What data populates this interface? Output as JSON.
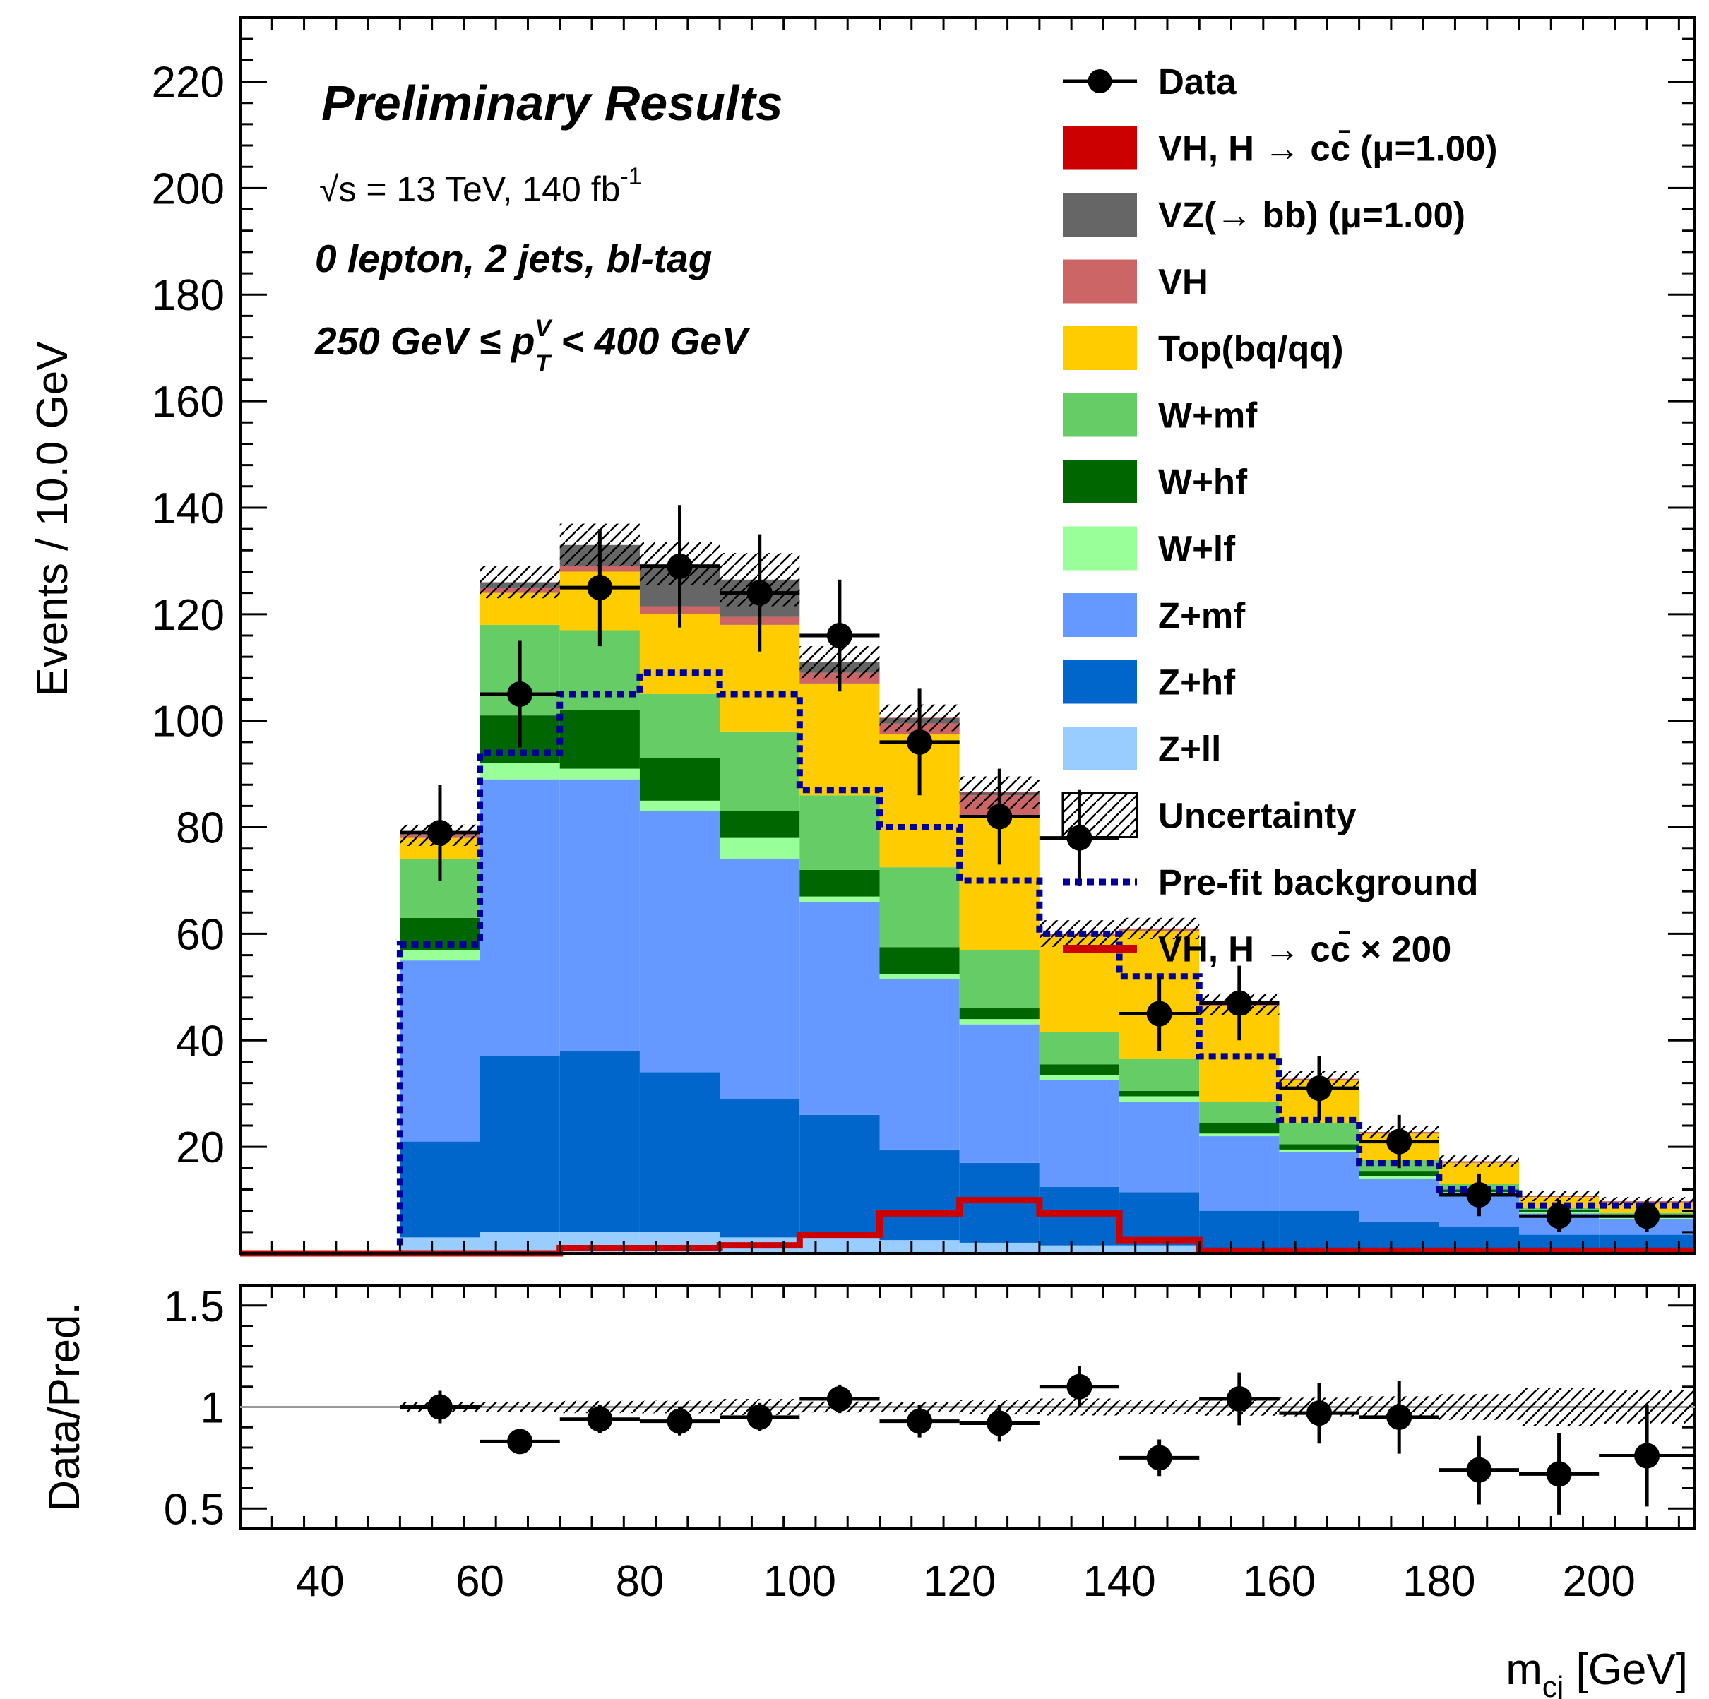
{
  "chart_data": {
    "type": "bar",
    "subtype": "stacked-histogram",
    "title": "Preliminary Results",
    "annotations": {
      "energy": "√s = 13 TeV, 140 fb",
      "energy_sup": "-1",
      "selection": "0 lepton, 2 jets, bl-tag",
      "ptv_pre": "250 GeV  ≤ p",
      "ptv_sup": "V",
      "ptv_sub": "T",
      "ptv_post": " < 400 GeV"
    },
    "ylabel": "Events / 10.0 GeV",
    "xlabel": "m",
    "xlabel_sub": "cj",
    "xlabel_unit": " [GeV]",
    "ratio_ylabel": "Data/Pred.",
    "xlim": [
      30,
      212
    ],
    "ylim": [
      0,
      232
    ],
    "ratio_ylim": [
      0.4,
      1.6
    ],
    "x_ticks": [
      "40",
      "60",
      "80",
      "100",
      "120",
      "140",
      "160",
      "180",
      "200"
    ],
    "y_ticks": [
      "20",
      "40",
      "60",
      "80",
      "100",
      "120",
      "140",
      "160",
      "180",
      "200",
      "220"
    ],
    "ratio_ticks": [
      "0.5",
      "1",
      "1.5"
    ],
    "bin_edges": [
      50,
      60,
      70,
      80,
      90,
      100,
      110,
      120,
      130,
      140,
      150,
      160,
      170,
      180,
      190,
      200,
      212
    ],
    "series": [
      {
        "name": "Z+ll",
        "color": "#99ccff",
        "values": [
          3,
          4,
          4,
          4,
          3,
          3,
          2.5,
          2,
          1.5,
          1.5,
          1,
          1,
          1,
          1,
          0.5,
          0.5
        ]
      },
      {
        "name": "Z+hf",
        "color": "#0066cc",
        "values": [
          18,
          33,
          34,
          30,
          26,
          23,
          17,
          15,
          11,
          10,
          7,
          7,
          5,
          4,
          3,
          3
        ]
      },
      {
        "name": "Z+mf",
        "color": "#6699ff",
        "values": [
          34,
          52,
          51,
          49,
          45,
          40,
          32,
          26,
          20,
          17,
          14,
          11,
          8,
          6,
          4,
          3
        ]
      },
      {
        "name": "W+lf",
        "color": "#99ff99",
        "values": [
          2,
          3,
          2,
          2,
          4,
          1,
          1,
          1,
          1,
          1,
          0.5,
          0.5,
          0.5,
          0.5,
          0.3,
          0.3
        ]
      },
      {
        "name": "W+hf",
        "color": "#006600",
        "values": [
          6,
          9,
          11,
          8,
          5,
          5,
          5,
          2,
          2,
          1,
          2,
          1,
          1,
          0.5,
          0.3,
          0.3
        ]
      },
      {
        "name": "W+mf",
        "color": "#66cc66",
        "values": [
          11,
          17,
          15,
          12,
          15,
          14,
          15,
          11,
          6,
          6,
          4,
          4,
          2,
          1,
          0.5,
          0.5
        ]
      },
      {
        "name": "Top(bq/qq)",
        "color": "#ffcc00",
        "values": [
          4,
          6,
          11,
          15,
          20,
          21,
          25,
          25,
          18,
          24,
          18,
          8,
          5,
          4,
          2,
          2
        ]
      },
      {
        "name": "VH",
        "color": "#cc6666",
        "values": [
          0.5,
          1,
          1,
          1.5,
          1.5,
          2,
          2,
          4,
          0.5,
          0.5,
          0.3,
          0.3,
          0.3,
          0.3,
          0.2,
          0.2
        ]
      },
      {
        "name": "VZ(→ bb) (μ=1.00)",
        "color": "#666666",
        "values": [
          0,
          1,
          4,
          8,
          7,
          2,
          1,
          0.5,
          0,
          0,
          0,
          0,
          0,
          0,
          0,
          0
        ]
      },
      {
        "name": "VH, H → cc̄ (μ=1.00)",
        "color": "#cc0000",
        "values": [
          0,
          0,
          0,
          0,
          0,
          0,
          0.05,
          0.05,
          0.05,
          0,
          0,
          0,
          0,
          0,
          0,
          0
        ]
      }
    ],
    "uncertainty_band": {
      "name": "Uncertainty",
      "values": [
        2,
        3,
        4,
        4,
        5,
        3,
        2.5,
        3,
        2.5,
        2,
        2,
        1.5,
        1.2,
        1.1,
        1,
        0.8
      ]
    },
    "prefit_background": {
      "name": "Pre-fit background",
      "color": "#000099",
      "values": [
        58,
        94,
        105,
        109,
        105,
        87,
        80,
        70,
        60,
        52,
        37,
        25,
        17,
        12,
        9,
        9
      ]
    },
    "signal_x200": {
      "name": "VH, H → cc̄ × 200",
      "color": "#cc0000",
      "values": [
        0,
        0,
        1,
        1,
        1.5,
        3.5,
        7.5,
        10,
        7.5,
        2.5,
        0.5,
        0.5,
        0.5,
        0.5,
        0.5,
        0.5
      ]
    },
    "data": {
      "name": "Data",
      "x": [
        55,
        65,
        75,
        85,
        95,
        105,
        115,
        125,
        135,
        145,
        155,
        165,
        175,
        185,
        195,
        206
      ],
      "y": [
        79,
        105,
        125,
        129,
        124,
        116,
        96,
        82,
        78,
        45,
        47,
        31,
        21,
        11,
        7,
        7
      ],
      "yerr": [
        9,
        10,
        11,
        11.5,
        11,
        10.5,
        10,
        9,
        9,
        7,
        7,
        6,
        5,
        4,
        3,
        3
      ],
      "ratio": [
        1.0,
        0.83,
        0.94,
        0.93,
        0.95,
        1.04,
        0.93,
        0.92,
        1.1,
        0.75,
        1.04,
        0.97,
        0.95,
        0.69,
        0.67,
        0.76
      ],
      "ratio_err": [
        0.08,
        0.05,
        0.07,
        0.07,
        0.07,
        0.07,
        0.08,
        0.09,
        0.1,
        0.09,
        0.13,
        0.15,
        0.18,
        0.17,
        0.2,
        0.25
      ]
    },
    "legend": [
      {
        "label": "Data",
        "kind": "marker"
      },
      {
        "label": "VH, H  → cc̄ (μ=1.00)",
        "kind": "fill",
        "color": "#cc0000"
      },
      {
        "label": "VZ(→ bb) (μ=1.00)",
        "kind": "fill",
        "color": "#666666"
      },
      {
        "label": "VH",
        "kind": "fill",
        "color": "#cc6666"
      },
      {
        "label": "Top(bq/qq)",
        "kind": "fill",
        "color": "#ffcc00"
      },
      {
        "label": "W+mf",
        "kind": "fill",
        "color": "#66cc66"
      },
      {
        "label": "W+hf",
        "kind": "fill",
        "color": "#006600"
      },
      {
        "label": "W+lf",
        "kind": "fill",
        "color": "#99ff99"
      },
      {
        "label": "Z+mf",
        "kind": "fill",
        "color": "#6699ff"
      },
      {
        "label": "Z+hf",
        "kind": "fill",
        "color": "#0066cc"
      },
      {
        "label": "Z+ll",
        "kind": "fill",
        "color": "#99ccff"
      },
      {
        "label": "Uncertainty",
        "kind": "hatch"
      },
      {
        "label": "Pre-fit background",
        "kind": "dotted",
        "color": "#000099"
      },
      {
        "label": "VH, H  → cc̄  × 200",
        "kind": "line",
        "color": "#cc0000"
      }
    ],
    "legend_position": "top-right",
    "grid": false
  }
}
